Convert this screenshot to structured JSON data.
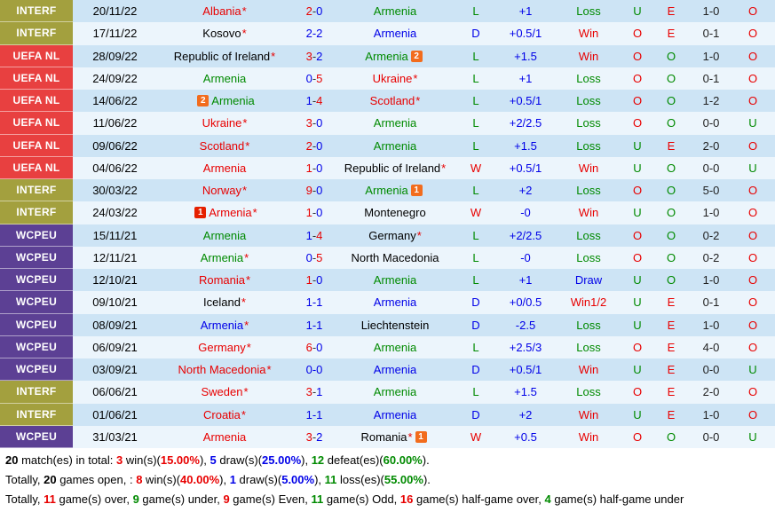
{
  "colors": {
    "red": "#E80000",
    "green": "#008A00",
    "blue": "#0000E8",
    "black": "#000000",
    "olive": "#A3A03E",
    "compRed": "#E84040",
    "purple": "#5C4094",
    "rowDark": "#CDE4F5",
    "rowLight": "#ECF5FC",
    "cardOrange": "#F26C1D",
    "cardRed": "#E52000"
  },
  "table": {
    "rows": [
      {
        "comp": "INTERF",
        "compBg": "olive",
        "date": "20/11/22",
        "home": [
          "Albania",
          "red",
          1,
          null,
          null
        ],
        "score": [
          "2",
          "red",
          "0",
          "blue"
        ],
        "away": [
          "Armenia",
          "green",
          0,
          null,
          null
        ],
        "res": [
          "L",
          "green"
        ],
        "hcp": "+1",
        "bet": [
          "Loss",
          "green"
        ],
        "ou": [
          "U",
          "green"
        ],
        "oe": [
          "E",
          "red"
        ],
        "ht": "1-0",
        "ou2": [
          "O",
          "red"
        ]
      },
      {
        "comp": "INTERF",
        "compBg": "olive",
        "date": "17/11/22",
        "home": [
          "Kosovo",
          "black",
          1,
          null,
          null
        ],
        "score": [
          "2",
          "blue",
          "2",
          "blue"
        ],
        "away": [
          "Armenia",
          "blue",
          0,
          null,
          null
        ],
        "res": [
          "D",
          "blue"
        ],
        "hcp": "+0.5/1",
        "bet": [
          "Win",
          "red"
        ],
        "ou": [
          "O",
          "red"
        ],
        "oe": [
          "E",
          "red"
        ],
        "ht": "0-1",
        "ou2": [
          "O",
          "red"
        ]
      },
      {
        "comp": "UEFA NL",
        "compBg": "compRed",
        "date": "28/09/22",
        "home": [
          "Republic of Ireland",
          "black",
          1,
          null,
          null
        ],
        "score": [
          "3",
          "red",
          "2",
          "blue"
        ],
        "away": [
          "Armenia",
          "green",
          0,
          null,
          [
            "2",
            "cardOrange"
          ]
        ],
        "res": [
          "L",
          "green"
        ],
        "hcp": "+1.5",
        "bet": [
          "Win",
          "red"
        ],
        "ou": [
          "O",
          "red"
        ],
        "oe": [
          "O",
          "green"
        ],
        "ht": "1-0",
        "ou2": [
          "O",
          "red"
        ]
      },
      {
        "comp": "UEFA NL",
        "compBg": "compRed",
        "date": "24/09/22",
        "home": [
          "Armenia",
          "green",
          0,
          null,
          null
        ],
        "score": [
          "0",
          "blue",
          "5",
          "red"
        ],
        "away": [
          "Ukraine",
          "red",
          1,
          null,
          null
        ],
        "res": [
          "L",
          "green"
        ],
        "hcp": "+1",
        "bet": [
          "Loss",
          "green"
        ],
        "ou": [
          "O",
          "red"
        ],
        "oe": [
          "O",
          "green"
        ],
        "ht": "0-1",
        "ou2": [
          "O",
          "red"
        ]
      },
      {
        "comp": "UEFA NL",
        "compBg": "compRed",
        "date": "14/06/22",
        "home": [
          "Armenia",
          "green",
          0,
          [
            "2",
            "cardOrange"
          ],
          null
        ],
        "score": [
          "1",
          "blue",
          "4",
          "red"
        ],
        "away": [
          "Scotland",
          "red",
          1,
          null,
          null
        ],
        "res": [
          "L",
          "green"
        ],
        "hcp": "+0.5/1",
        "bet": [
          "Loss",
          "green"
        ],
        "ou": [
          "O",
          "red"
        ],
        "oe": [
          "O",
          "green"
        ],
        "ht": "1-2",
        "ou2": [
          "O",
          "red"
        ]
      },
      {
        "comp": "UEFA NL",
        "compBg": "compRed",
        "date": "11/06/22",
        "home": [
          "Ukraine",
          "red",
          1,
          null,
          null
        ],
        "score": [
          "3",
          "red",
          "0",
          "blue"
        ],
        "away": [
          "Armenia",
          "green",
          0,
          null,
          null
        ],
        "res": [
          "L",
          "green"
        ],
        "hcp": "+2/2.5",
        "bet": [
          "Loss",
          "green"
        ],
        "ou": [
          "O",
          "red"
        ],
        "oe": [
          "O",
          "green"
        ],
        "ht": "0-0",
        "ou2": [
          "U",
          "green"
        ]
      },
      {
        "comp": "UEFA NL",
        "compBg": "compRed",
        "date": "09/06/22",
        "home": [
          "Scotland",
          "red",
          1,
          null,
          null
        ],
        "score": [
          "2",
          "red",
          "0",
          "blue"
        ],
        "away": [
          "Armenia",
          "green",
          0,
          null,
          null
        ],
        "res": [
          "L",
          "green"
        ],
        "hcp": "+1.5",
        "bet": [
          "Loss",
          "green"
        ],
        "ou": [
          "U",
          "green"
        ],
        "oe": [
          "E",
          "red"
        ],
        "ht": "2-0",
        "ou2": [
          "O",
          "red"
        ]
      },
      {
        "comp": "UEFA NL",
        "compBg": "compRed",
        "date": "04/06/22",
        "home": [
          "Armenia",
          "red",
          0,
          null,
          null
        ],
        "score": [
          "1",
          "red",
          "0",
          "blue"
        ],
        "away": [
          "Republic of Ireland",
          "black",
          1,
          null,
          null
        ],
        "res": [
          "W",
          "red"
        ],
        "hcp": "+0.5/1",
        "bet": [
          "Win",
          "red"
        ],
        "ou": [
          "U",
          "green"
        ],
        "oe": [
          "O",
          "green"
        ],
        "ht": "0-0",
        "ou2": [
          "U",
          "green"
        ]
      },
      {
        "comp": "INTERF",
        "compBg": "olive",
        "date": "30/03/22",
        "home": [
          "Norway",
          "red",
          1,
          null,
          null
        ],
        "score": [
          "9",
          "red",
          "0",
          "blue"
        ],
        "away": [
          "Armenia",
          "green",
          0,
          null,
          [
            "1",
            "cardOrange"
          ]
        ],
        "res": [
          "L",
          "green"
        ],
        "hcp": "+2",
        "bet": [
          "Loss",
          "green"
        ],
        "ou": [
          "O",
          "red"
        ],
        "oe": [
          "O",
          "green"
        ],
        "ht": "5-0",
        "ou2": [
          "O",
          "red"
        ]
      },
      {
        "comp": "INTERF",
        "compBg": "olive",
        "date": "24/03/22",
        "home": [
          "Armenia",
          "red",
          1,
          [
            "1",
            "cardRed"
          ],
          null
        ],
        "score": [
          "1",
          "red",
          "0",
          "blue"
        ],
        "away": [
          "Montenegro",
          "black",
          0,
          null,
          null
        ],
        "res": [
          "W",
          "red"
        ],
        "hcp": "-0",
        "bet": [
          "Win",
          "red"
        ],
        "ou": [
          "U",
          "green"
        ],
        "oe": [
          "O",
          "green"
        ],
        "ht": "1-0",
        "ou2": [
          "O",
          "red"
        ]
      },
      {
        "comp": "WCPEU",
        "compBg": "purple",
        "date": "15/11/21",
        "home": [
          "Armenia",
          "green",
          0,
          null,
          null
        ],
        "score": [
          "1",
          "blue",
          "4",
          "red"
        ],
        "away": [
          "Germany",
          "black",
          1,
          null,
          null
        ],
        "res": [
          "L",
          "green"
        ],
        "hcp": "+2/2.5",
        "bet": [
          "Loss",
          "green"
        ],
        "ou": [
          "O",
          "red"
        ],
        "oe": [
          "O",
          "green"
        ],
        "ht": "0-2",
        "ou2": [
          "O",
          "red"
        ]
      },
      {
        "comp": "WCPEU",
        "compBg": "purple",
        "date": "12/11/21",
        "home": [
          "Armenia",
          "green",
          1,
          null,
          null
        ],
        "score": [
          "0",
          "blue",
          "5",
          "red"
        ],
        "away": [
          "North Macedonia",
          "black",
          0,
          null,
          null
        ],
        "res": [
          "L",
          "green"
        ],
        "hcp": "-0",
        "bet": [
          "Loss",
          "green"
        ],
        "ou": [
          "O",
          "red"
        ],
        "oe": [
          "O",
          "green"
        ],
        "ht": "0-2",
        "ou2": [
          "O",
          "red"
        ]
      },
      {
        "comp": "WCPEU",
        "compBg": "purple",
        "date": "12/10/21",
        "home": [
          "Romania",
          "red",
          1,
          null,
          null
        ],
        "score": [
          "1",
          "red",
          "0",
          "blue"
        ],
        "away": [
          "Armenia",
          "green",
          0,
          null,
          null
        ],
        "res": [
          "L",
          "green"
        ],
        "hcp": "+1",
        "bet": [
          "Draw",
          "blue"
        ],
        "ou": [
          "U",
          "green"
        ],
        "oe": [
          "O",
          "green"
        ],
        "ht": "1-0",
        "ou2": [
          "O",
          "red"
        ]
      },
      {
        "comp": "WCPEU",
        "compBg": "purple",
        "date": "09/10/21",
        "home": [
          "Iceland",
          "black",
          1,
          null,
          null
        ],
        "score": [
          "1",
          "blue",
          "1",
          "blue"
        ],
        "away": [
          "Armenia",
          "blue",
          0,
          null,
          null
        ],
        "res": [
          "D",
          "blue"
        ],
        "hcp": "+0/0.5",
        "bet": [
          "Win1/2",
          "red"
        ],
        "ou": [
          "U",
          "green"
        ],
        "oe": [
          "E",
          "red"
        ],
        "ht": "0-1",
        "ou2": [
          "O",
          "red"
        ]
      },
      {
        "comp": "WCPEU",
        "compBg": "purple",
        "date": "08/09/21",
        "home": [
          "Armenia",
          "blue",
          1,
          null,
          null
        ],
        "score": [
          "1",
          "blue",
          "1",
          "blue"
        ],
        "away": [
          "Liechtenstein",
          "black",
          0,
          null,
          null
        ],
        "res": [
          "D",
          "blue"
        ],
        "hcp": "-2.5",
        "bet": [
          "Loss",
          "green"
        ],
        "ou": [
          "U",
          "green"
        ],
        "oe": [
          "E",
          "red"
        ],
        "ht": "1-0",
        "ou2": [
          "O",
          "red"
        ]
      },
      {
        "comp": "WCPEU",
        "compBg": "purple",
        "date": "06/09/21",
        "home": [
          "Germany",
          "red",
          1,
          null,
          null
        ],
        "score": [
          "6",
          "red",
          "0",
          "blue"
        ],
        "away": [
          "Armenia",
          "green",
          0,
          null,
          null
        ],
        "res": [
          "L",
          "green"
        ],
        "hcp": "+2.5/3",
        "bet": [
          "Loss",
          "green"
        ],
        "ou": [
          "O",
          "red"
        ],
        "oe": [
          "E",
          "red"
        ],
        "ht": "4-0",
        "ou2": [
          "O",
          "red"
        ]
      },
      {
        "comp": "WCPEU",
        "compBg": "purple",
        "date": "03/09/21",
        "home": [
          "North Macedonia",
          "red",
          1,
          null,
          null
        ],
        "score": [
          "0",
          "blue",
          "0",
          "blue"
        ],
        "away": [
          "Armenia",
          "blue",
          0,
          null,
          null
        ],
        "res": [
          "D",
          "blue"
        ],
        "hcp": "+0.5/1",
        "bet": [
          "Win",
          "red"
        ],
        "ou": [
          "U",
          "green"
        ],
        "oe": [
          "E",
          "red"
        ],
        "ht": "0-0",
        "ou2": [
          "U",
          "green"
        ]
      },
      {
        "comp": "INTERF",
        "compBg": "olive",
        "date": "06/06/21",
        "home": [
          "Sweden",
          "red",
          1,
          null,
          null
        ],
        "score": [
          "3",
          "red",
          "1",
          "blue"
        ],
        "away": [
          "Armenia",
          "green",
          0,
          null,
          null
        ],
        "res": [
          "L",
          "green"
        ],
        "hcp": "+1.5",
        "bet": [
          "Loss",
          "green"
        ],
        "ou": [
          "O",
          "red"
        ],
        "oe": [
          "E",
          "red"
        ],
        "ht": "2-0",
        "ou2": [
          "O",
          "red"
        ]
      },
      {
        "comp": "INTERF",
        "compBg": "olive",
        "date": "01/06/21",
        "home": [
          "Croatia",
          "red",
          1,
          null,
          null
        ],
        "score": [
          "1",
          "blue",
          "1",
          "blue"
        ],
        "away": [
          "Armenia",
          "blue",
          0,
          null,
          null
        ],
        "res": [
          "D",
          "blue"
        ],
        "hcp": "+2",
        "bet": [
          "Win",
          "red"
        ],
        "ou": [
          "U",
          "green"
        ],
        "oe": [
          "E",
          "red"
        ],
        "ht": "1-0",
        "ou2": [
          "O",
          "red"
        ]
      },
      {
        "comp": "WCPEU",
        "compBg": "purple",
        "date": "31/03/21",
        "home": [
          "Armenia",
          "red",
          0,
          null,
          null
        ],
        "score": [
          "3",
          "red",
          "2",
          "blue"
        ],
        "away": [
          "Romania",
          "black",
          1,
          null,
          [
            "1",
            "cardOrange"
          ]
        ],
        "res": [
          "W",
          "red"
        ],
        "hcp": "+0.5",
        "bet": [
          "Win",
          "red"
        ],
        "ou": [
          "O",
          "red"
        ],
        "oe": [
          "O",
          "green"
        ],
        "ht": "0-0",
        "ou2": [
          "U",
          "green"
        ]
      }
    ]
  },
  "summary": {
    "lines": [
      [
        {
          "t": "20",
          "b": true
        },
        {
          "t": " match(es) in total: "
        },
        {
          "t": "3",
          "c": "red",
          "b": true
        },
        {
          "t": " win(s)("
        },
        {
          "t": "15.00%",
          "c": "red",
          "b": true
        },
        {
          "t": "), "
        },
        {
          "t": "5",
          "c": "blue",
          "b": true
        },
        {
          "t": " draw(s)("
        },
        {
          "t": "25.00%",
          "c": "blue",
          "b": true
        },
        {
          "t": "), "
        },
        {
          "t": "12",
          "c": "green",
          "b": true
        },
        {
          "t": " defeat(es)("
        },
        {
          "t": "60.00%",
          "c": "green",
          "b": true
        },
        {
          "t": ")."
        }
      ],
      [
        {
          "t": "Totally, "
        },
        {
          "t": "20",
          "b": true
        },
        {
          "t": " games open, : "
        },
        {
          "t": "8",
          "c": "red",
          "b": true
        },
        {
          "t": " win(s)("
        },
        {
          "t": "40.00%",
          "c": "red",
          "b": true
        },
        {
          "t": "), "
        },
        {
          "t": "1",
          "c": "blue",
          "b": true
        },
        {
          "t": " draw(s)("
        },
        {
          "t": "5.00%",
          "c": "blue",
          "b": true
        },
        {
          "t": "), "
        },
        {
          "t": "11",
          "c": "green",
          "b": true
        },
        {
          "t": " loss(es)("
        },
        {
          "t": "55.00%",
          "c": "green",
          "b": true
        },
        {
          "t": ")."
        }
      ],
      [
        {
          "t": "Totally, "
        },
        {
          "t": "11",
          "c": "red",
          "b": true
        },
        {
          "t": " game(s) over, "
        },
        {
          "t": "9",
          "c": "green",
          "b": true
        },
        {
          "t": " game(s) under, "
        },
        {
          "t": "9",
          "c": "red",
          "b": true
        },
        {
          "t": " game(s) Even, "
        },
        {
          "t": "11",
          "c": "green",
          "b": true
        },
        {
          "t": " game(s) Odd, "
        },
        {
          "t": "16",
          "c": "red",
          "b": true
        },
        {
          "t": " game(s) half-game over, "
        },
        {
          "t": "4",
          "c": "green",
          "b": true
        },
        {
          "t": " game(s) half-game under"
        }
      ]
    ]
  }
}
